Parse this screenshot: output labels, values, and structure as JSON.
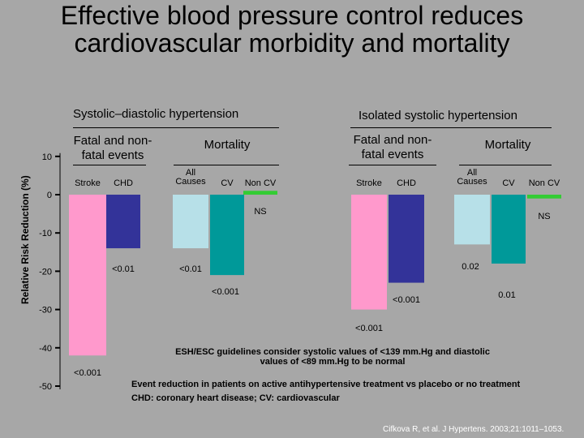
{
  "title": "Effective blood pressure control reduces cardiovascular morbidity and mortality",
  "panels": {
    "left": "Systolic–diastolic hypertension",
    "right": "Isolated systolic hypertension",
    "left_fatal": "Fatal and non-fatal events",
    "left_mortality": "Mortality",
    "right_fatal": "Fatal and non-fatal events",
    "right_mortality": "Mortality"
  },
  "note1": "ESH/ESC guidelines consider systolic values of <139 mm.Hg and diastolic values of <89 mm.Hg to be normal",
  "note2": "Event reduction in patients on active antihypertensive treatment vs placebo or no treatment",
  "note3": "CHD: coronary heart disease; CV: cardiovascular",
  "citation": "Cifkova R, et al. J Hypertens. 2003;21:1011–1053.",
  "chart_data": {
    "type": "bar",
    "ylabel": "Relative Risk Reduction (%)",
    "ylim": [
      -50,
      10
    ],
    "yticks": [
      10,
      0,
      -10,
      -20,
      -30,
      -40,
      -50
    ],
    "colors": {
      "stroke": "#ff99cc",
      "chd": "#333399",
      "all_causes": "#b7e0e8",
      "cv": "#009999",
      "non_cv": "#33cc33"
    },
    "bars": [
      {
        "panel": "Systolic–diastolic hypertension",
        "group": "Fatal and non-fatal events",
        "category": "Stroke",
        "value": -42,
        "p": "<0.001",
        "color_key": "stroke"
      },
      {
        "panel": "Systolic–diastolic hypertension",
        "group": "Fatal and non-fatal events",
        "category": "CHD",
        "value": -14,
        "p": "<0.01",
        "color_key": "chd"
      },
      {
        "panel": "Systolic–diastolic hypertension",
        "group": "Mortality",
        "category": "All Causes",
        "value": -14,
        "p": "<0.01",
        "color_key": "all_causes"
      },
      {
        "panel": "Systolic–diastolic hypertension",
        "group": "Mortality",
        "category": "CV",
        "value": -21,
        "p": "<0.001",
        "color_key": "cv"
      },
      {
        "panel": "Systolic–diastolic hypertension",
        "group": "Mortality",
        "category": "Non CV",
        "value": 1,
        "p": "NS",
        "color_key": "non_cv"
      },
      {
        "panel": "Isolated systolic hypertension",
        "group": "Fatal and non-fatal events",
        "category": "Stroke",
        "value": -30,
        "p": "<0.001",
        "color_key": "stroke"
      },
      {
        "panel": "Isolated systolic hypertension",
        "group": "Fatal and non-fatal events",
        "category": "CHD",
        "value": -23,
        "p": "<0.001",
        "color_key": "chd"
      },
      {
        "panel": "Isolated systolic hypertension",
        "group": "Mortality",
        "category": "All Causes",
        "value": -13,
        "p": "0.02",
        "color_key": "all_causes"
      },
      {
        "panel": "Isolated systolic hypertension",
        "group": "Mortality",
        "category": "CV",
        "value": -18,
        "p": "0.01",
        "color_key": "cv"
      },
      {
        "panel": "Isolated systolic hypertension",
        "group": "Mortality",
        "category": "Non CV",
        "value": -1,
        "p": "NS",
        "color_key": "non_cv"
      }
    ]
  }
}
